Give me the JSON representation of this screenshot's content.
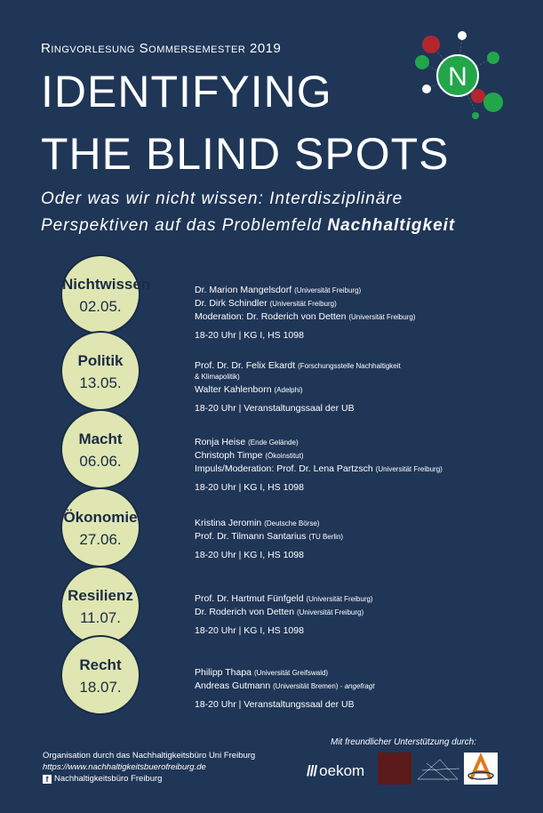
{
  "header": {
    "series": "Ringvorlesung Sommersemester 2019",
    "title_line1": "IDENTIFYING",
    "title_line2": "THE BLIND SPOTS",
    "subtitle_line1": "Oder was wir nicht wissen: Interdisziplinäre",
    "subtitle_line2_prefix": "Perspektiven auf das Problemfeld ",
    "subtitle_line2_bold": "Nachhaltigkeit",
    "logo_letter": "N"
  },
  "colors": {
    "background": "#1f3657",
    "circle_fill": "#dfe6b2",
    "logo_green": "#22a64a",
    "logo_red": "#b3262e"
  },
  "sessions": [
    {
      "topic": "Nichtwissen",
      "date": "02.05.",
      "speakers": [
        {
          "name": "Dr. Marion Mangelsdorf",
          "affiliation": "(Universität Freiburg)"
        },
        {
          "name": "Dr. Dirk Schindler",
          "affiliation": "(Universität Freiburg)"
        },
        {
          "name": "Moderation: Dr. Roderich von Detten",
          "affiliation": "(Universität Freiburg)"
        }
      ],
      "time": "18-20 Uhr | KG I, HS 1098"
    },
    {
      "topic": "Politik",
      "date": "13.05.",
      "speakers": [
        {
          "name": "Prof. Dr. Dr. Felix Ekardt",
          "affiliation": "(Forschungsstelle Nachhaltigkeit"
        },
        {
          "name": "",
          "affiliation": "& Klimapolitik)"
        },
        {
          "name": "Walter Kahlenborn",
          "affiliation": "(Adelphi)"
        }
      ],
      "time": "18-20 Uhr | Veranstaltungssaal der UB"
    },
    {
      "topic": "Macht",
      "date": "06.06.",
      "speakers": [
        {
          "name": "Ronja Heise",
          "affiliation": "(Ende Gelände)"
        },
        {
          "name": "Christoph Timpe",
          "affiliation": "(Ökoinstitut)"
        },
        {
          "name": "Impuls/Moderation: Prof. Dr. Lena Partzsch",
          "affiliation": "(Universität Freiburg)"
        }
      ],
      "time": "18-20 Uhr | KG I, HS 1098"
    },
    {
      "topic": "Ökonomie",
      "date": "27.06.",
      "speakers": [
        {
          "name": "Kristina Jeromin",
          "affiliation": "(Deutsche Börse)"
        },
        {
          "name": "Prof. Dr. Tilmann Santarius",
          "affiliation": "(TU Berlin)"
        }
      ],
      "time": "18-20 Uhr | KG I, HS 1098"
    },
    {
      "topic": "Resilienz",
      "date": "11.07.",
      "speakers": [
        {
          "name": "Prof. Dr. Hartmut Fünfgeld",
          "affiliation": "(Universität Freiburg)"
        },
        {
          "name": "Dr. Roderich von Detten",
          "affiliation": "(Universität Freiburg)"
        }
      ],
      "time": "18-20 Uhr | KG I, HS 1098"
    },
    {
      "topic": "Recht",
      "date": "18.07.",
      "speakers": [
        {
          "name": "Philipp Thapa",
          "affiliation": "(Universität Greifswald)"
        },
        {
          "name": "Andreas Gutmann",
          "affiliation": "(Universität Bremen)",
          "note": " - angefragt"
        }
      ],
      "time": "18-20 Uhr | Veranstaltungssaal der UB"
    }
  ],
  "footer": {
    "organisation": "Organisation durch das Nachhaltigkeitsbüro Uni Freiburg",
    "url": "https://www.nachhaltigkeitsbuerofreiburg.de",
    "facebook_icon": "facebook-icon",
    "facebook": "Nachhaltigkeitsbüro Freiburg",
    "support": "Mit freundlicher Unterstützung durch:",
    "sponsor_oekom": "oekom",
    "sponsor_oekom_bars": "///"
  }
}
